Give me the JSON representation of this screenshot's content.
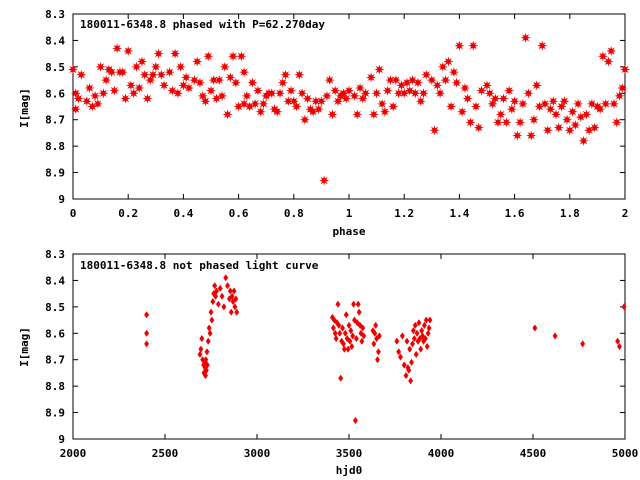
{
  "chart_data": [
    {
      "type": "scatter",
      "title": "180011-6348.8 phased with P=62.270day",
      "xlabel": "phase",
      "ylabel": "I[mag]",
      "xlim": [
        0,
        2
      ],
      "ylim": [
        8.3,
        9
      ],
      "y_inverted": true,
      "grid": false,
      "legend": "none",
      "marker": "star",
      "color": "#ee0000",
      "x_ticks": [
        "0",
        "0.2",
        "0.4",
        "0.6",
        "0.8",
        "1",
        "1.2",
        "1.4",
        "1.6",
        "1.8",
        "2"
      ],
      "y_ticks": [
        "8.3",
        "8.4",
        "8.5",
        "8.6",
        "8.7",
        "8.8",
        "8.9",
        "9"
      ],
      "points": [
        [
          0.0,
          8.51
        ],
        [
          0.01,
          8.6
        ],
        [
          0.01,
          8.66
        ],
        [
          0.02,
          8.62
        ],
        [
          0.03,
          8.53
        ],
        [
          0.05,
          8.63
        ],
        [
          0.06,
          8.58
        ],
        [
          0.07,
          8.65
        ],
        [
          0.08,
          8.61
        ],
        [
          0.09,
          8.64
        ],
        [
          0.1,
          8.5
        ],
        [
          0.11,
          8.6
        ],
        [
          0.12,
          8.55
        ],
        [
          0.13,
          8.51
        ],
        [
          0.14,
          8.52
        ],
        [
          0.15,
          8.59
        ],
        [
          0.16,
          8.43
        ],
        [
          0.17,
          8.52
        ],
        [
          0.18,
          8.52
        ],
        [
          0.19,
          8.62
        ],
        [
          0.2,
          8.44
        ],
        [
          0.21,
          8.57
        ],
        [
          0.22,
          8.6
        ],
        [
          0.23,
          8.5
        ],
        [
          0.24,
          8.58
        ],
        [
          0.25,
          8.48
        ],
        [
          0.26,
          8.53
        ],
        [
          0.27,
          8.62
        ],
        [
          0.28,
          8.55
        ],
        [
          0.29,
          8.53
        ],
        [
          0.3,
          8.5
        ],
        [
          0.31,
          8.45
        ],
        [
          0.32,
          8.53
        ],
        [
          0.33,
          8.57
        ],
        [
          0.35,
          8.52
        ],
        [
          0.36,
          8.59
        ],
        [
          0.37,
          8.45
        ],
        [
          0.38,
          8.6
        ],
        [
          0.39,
          8.5
        ],
        [
          0.4,
          8.57
        ],
        [
          0.41,
          8.54
        ],
        [
          0.42,
          8.58
        ],
        [
          0.44,
          8.55
        ],
        [
          0.45,
          8.48
        ],
        [
          0.46,
          8.56
        ],
        [
          0.47,
          8.61
        ],
        [
          0.48,
          8.63
        ],
        [
          0.49,
          8.46
        ],
        [
          0.5,
          8.59
        ],
        [
          0.51,
          8.55
        ],
        [
          0.52,
          8.62
        ],
        [
          0.53,
          8.55
        ],
        [
          0.54,
          8.61
        ],
        [
          0.55,
          8.5
        ],
        [
          0.56,
          8.68
        ],
        [
          0.57,
          8.54
        ],
        [
          0.58,
          8.46
        ],
        [
          0.59,
          8.56
        ],
        [
          0.6,
          8.65
        ],
        [
          0.61,
          8.46
        ],
        [
          0.62,
          8.52
        ],
        [
          0.62,
          8.64
        ],
        [
          0.63,
          8.61
        ],
        [
          0.64,
          8.65
        ],
        [
          0.65,
          8.56
        ],
        [
          0.66,
          8.64
        ],
        [
          0.67,
          8.59
        ],
        [
          0.68,
          8.67
        ],
        [
          0.69,
          8.64
        ],
        [
          0.7,
          8.61
        ],
        [
          0.71,
          8.6
        ],
        [
          0.72,
          8.6
        ],
        [
          0.73,
          8.66
        ],
        [
          0.74,
          8.67
        ],
        [
          0.75,
          8.6
        ],
        [
          0.76,
          8.56
        ],
        [
          0.77,
          8.53
        ],
        [
          0.78,
          8.63
        ],
        [
          0.79,
          8.59
        ],
        [
          0.8,
          8.63
        ],
        [
          0.81,
          8.65
        ],
        [
          0.82,
          8.53
        ],
        [
          0.83,
          8.6
        ],
        [
          0.84,
          8.7
        ],
        [
          0.85,
          8.62
        ],
        [
          0.86,
          8.66
        ],
        [
          0.87,
          8.67
        ],
        [
          0.88,
          8.63
        ],
        [
          0.89,
          8.66
        ],
        [
          0.9,
          8.63
        ],
        [
          0.91,
          8.93
        ],
        [
          0.92,
          8.61
        ],
        [
          0.93,
          8.55
        ],
        [
          0.94,
          8.68
        ],
        [
          0.95,
          8.59
        ],
        [
          0.96,
          8.63
        ],
        [
          0.97,
          8.61
        ],
        [
          0.98,
          8.6
        ],
        [
          0.99,
          8.62
        ],
        [
          1.0,
          8.59
        ],
        [
          1.02,
          8.61
        ],
        [
          1.03,
          8.68
        ],
        [
          1.04,
          8.58
        ],
        [
          1.05,
          8.62
        ],
        [
          1.06,
          8.6
        ],
        [
          1.08,
          8.54
        ],
        [
          1.09,
          8.68
        ],
        [
          1.1,
          8.6
        ],
        [
          1.11,
          8.51
        ],
        [
          1.12,
          8.64
        ],
        [
          1.13,
          8.67
        ],
        [
          1.14,
          8.59
        ],
        [
          1.15,
          8.55
        ],
        [
          1.16,
          8.65
        ],
        [
          1.17,
          8.55
        ],
        [
          1.18,
          8.6
        ],
        [
          1.19,
          8.57
        ],
        [
          1.2,
          8.6
        ],
        [
          1.21,
          8.56
        ],
        [
          1.22,
          8.59
        ],
        [
          1.23,
          8.55
        ],
        [
          1.24,
          8.6
        ],
        [
          1.25,
          8.56
        ],
        [
          1.26,
          8.63
        ],
        [
          1.27,
          8.6
        ],
        [
          1.28,
          8.53
        ],
        [
          1.3,
          8.55
        ],
        [
          1.31,
          8.74
        ],
        [
          1.32,
          8.57
        ],
        [
          1.33,
          8.6
        ],
        [
          1.34,
          8.5
        ],
        [
          1.35,
          8.55
        ],
        [
          1.36,
          8.48
        ],
        [
          1.37,
          8.65
        ],
        [
          1.38,
          8.52
        ],
        [
          1.39,
          8.56
        ],
        [
          1.4,
          8.42
        ],
        [
          1.41,
          8.67
        ],
        [
          1.42,
          8.58
        ],
        [
          1.43,
          8.62
        ],
        [
          1.44,
          8.71
        ],
        [
          1.45,
          8.42
        ],
        [
          1.46,
          8.65
        ],
        [
          1.47,
          8.73
        ],
        [
          1.48,
          8.59
        ],
        [
          1.5,
          8.57
        ],
        [
          1.51,
          8.6
        ],
        [
          1.52,
          8.64
        ],
        [
          1.53,
          8.62
        ],
        [
          1.54,
          8.71
        ],
        [
          1.55,
          8.68
        ],
        [
          1.56,
          8.62
        ],
        [
          1.57,
          8.71
        ],
        [
          1.58,
          8.59
        ],
        [
          1.59,
          8.66
        ],
        [
          1.6,
          8.63
        ],
        [
          1.61,
          8.76
        ],
        [
          1.62,
          8.71
        ],
        [
          1.63,
          8.64
        ],
        [
          1.64,
          8.39
        ],
        [
          1.65,
          8.6
        ],
        [
          1.66,
          8.76
        ],
        [
          1.67,
          8.7
        ],
        [
          1.68,
          8.57
        ],
        [
          1.69,
          8.65
        ],
        [
          1.7,
          8.42
        ],
        [
          1.71,
          8.64
        ],
        [
          1.72,
          8.74
        ],
        [
          1.73,
          8.66
        ],
        [
          1.74,
          8.63
        ],
        [
          1.75,
          8.68
        ],
        [
          1.76,
          8.73
        ],
        [
          1.77,
          8.65
        ],
        [
          1.78,
          8.63
        ],
        [
          1.79,
          8.7
        ],
        [
          1.8,
          8.74
        ],
        [
          1.81,
          8.67
        ],
        [
          1.82,
          8.72
        ],
        [
          1.83,
          8.64
        ],
        [
          1.84,
          8.69
        ],
        [
          1.85,
          8.78
        ],
        [
          1.86,
          8.68
        ],
        [
          1.87,
          8.74
        ],
        [
          1.88,
          8.64
        ],
        [
          1.89,
          8.73
        ],
        [
          1.9,
          8.65
        ],
        [
          1.91,
          8.66
        ],
        [
          1.92,
          8.46
        ],
        [
          1.93,
          8.64
        ],
        [
          1.94,
          8.48
        ],
        [
          1.95,
          8.44
        ],
        [
          1.96,
          8.64
        ],
        [
          1.97,
          8.71
        ],
        [
          1.98,
          8.61
        ],
        [
          1.99,
          8.58
        ],
        [
          2.0,
          8.51
        ]
      ]
    },
    {
      "type": "scatter",
      "title": "180011-6348.8 not phased light curve",
      "xlabel": "hjd0",
      "ylabel": "I[mag]",
      "xlim": [
        2000,
        5000
      ],
      "ylim": [
        8.3,
        9
      ],
      "y_inverted": true,
      "grid": false,
      "legend": "none",
      "marker": "diamond",
      "color": "#ee0000",
      "x_ticks": [
        "2000",
        "2500",
        "3000",
        "3500",
        "4000",
        "4500",
        "5000"
      ],
      "y_ticks": [
        "8.3",
        "8.4",
        "8.5",
        "8.6",
        "8.7",
        "8.8",
        "8.9",
        "9"
      ],
      "points": [
        [
          2400,
          8.53
        ],
        [
          2400,
          8.6
        ],
        [
          2400,
          8.64
        ],
        [
          2690,
          8.68
        ],
        [
          2695,
          8.66
        ],
        [
          2700,
          8.62
        ],
        [
          2705,
          8.7
        ],
        [
          2710,
          8.72
        ],
        [
          2712,
          8.75
        ],
        [
          2715,
          8.71
        ],
        [
          2718,
          8.73
        ],
        [
          2720,
          8.76
        ],
        [
          2722,
          8.7
        ],
        [
          2725,
          8.74
        ],
        [
          2728,
          8.67
        ],
        [
          2730,
          8.72
        ],
        [
          2735,
          8.63
        ],
        [
          2740,
          8.58
        ],
        [
          2745,
          8.6
        ],
        [
          2750,
          8.52
        ],
        [
          2755,
          8.55
        ],
        [
          2760,
          8.48
        ],
        [
          2765,
          8.45
        ],
        [
          2770,
          8.42
        ],
        [
          2775,
          8.46
        ],
        [
          2780,
          8.44
        ],
        [
          2790,
          8.49
        ],
        [
          2800,
          8.43
        ],
        [
          2810,
          8.46
        ],
        [
          2820,
          8.5
        ],
        [
          2830,
          8.39
        ],
        [
          2840,
          8.42
        ],
        [
          2850,
          8.47
        ],
        [
          2855,
          8.44
        ],
        [
          2860,
          8.52
        ],
        [
          2865,
          8.46
        ],
        [
          2870,
          8.48
        ],
        [
          2875,
          8.44
        ],
        [
          2880,
          8.5
        ],
        [
          2885,
          8.47
        ],
        [
          2890,
          8.52
        ],
        [
          3410,
          8.54
        ],
        [
          3415,
          8.58
        ],
        [
          3420,
          8.55
        ],
        [
          3425,
          8.6
        ],
        [
          3430,
          8.62
        ],
        [
          3435,
          8.56
        ],
        [
          3440,
          8.49
        ],
        [
          3445,
          8.57
        ],
        [
          3450,
          8.6
        ],
        [
          3455,
          8.77
        ],
        [
          3460,
          8.63
        ],
        [
          3465,
          8.58
        ],
        [
          3470,
          8.64
        ],
        [
          3475,
          8.66
        ],
        [
          3480,
          8.6
        ],
        [
          3485,
          8.53
        ],
        [
          3490,
          8.62
        ],
        [
          3495,
          8.66
        ],
        [
          3500,
          8.57
        ],
        [
          3505,
          8.63
        ],
        [
          3510,
          8.59
        ],
        [
          3515,
          8.65
        ],
        [
          3520,
          8.61
        ],
        [
          3525,
          8.49
        ],
        [
          3530,
          8.55
        ],
        [
          3535,
          8.93
        ],
        [
          3540,
          8.62
        ],
        [
          3545,
          8.56
        ],
        [
          3550,
          8.49
        ],
        [
          3555,
          8.52
        ],
        [
          3560,
          8.57
        ],
        [
          3565,
          8.6
        ],
        [
          3570,
          8.63
        ],
        [
          3575,
          8.58
        ],
        [
          3580,
          8.61
        ],
        [
          3630,
          8.59
        ],
        [
          3635,
          8.64
        ],
        [
          3640,
          8.6
        ],
        [
          3645,
          8.57
        ],
        [
          3650,
          8.62
        ],
        [
          3655,
          8.7
        ],
        [
          3660,
          8.67
        ],
        [
          3665,
          8.61
        ],
        [
          3760,
          8.63
        ],
        [
          3770,
          8.67
        ],
        [
          3780,
          8.69
        ],
        [
          3790,
          8.61
        ],
        [
          3800,
          8.72
        ],
        [
          3810,
          8.76
        ],
        [
          3815,
          8.63
        ],
        [
          3820,
          8.73
        ],
        [
          3825,
          8.74
        ],
        [
          3830,
          8.66
        ],
        [
          3835,
          8.78
        ],
        [
          3840,
          8.71
        ],
        [
          3845,
          8.64
        ],
        [
          3850,
          8.59
        ],
        [
          3855,
          8.62
        ],
        [
          3860,
          8.57
        ],
        [
          3865,
          8.68
        ],
        [
          3870,
          8.6
        ],
        [
          3875,
          8.63
        ],
        [
          3880,
          8.56
        ],
        [
          3885,
          8.62
        ],
        [
          3890,
          8.66
        ],
        [
          3895,
          8.59
        ],
        [
          3900,
          8.61
        ],
        [
          3905,
          8.63
        ],
        [
          3910,
          8.57
        ],
        [
          3915,
          8.62
        ],
        [
          3920,
          8.55
        ],
        [
          3925,
          8.65
        ],
        [
          3930,
          8.6
        ],
        [
          3935,
          8.58
        ],
        [
          3940,
          8.55
        ],
        [
          4510,
          8.58
        ],
        [
          4620,
          8.61
        ],
        [
          4770,
          8.64
        ],
        [
          4960,
          8.63
        ],
        [
          4970,
          8.65
        ],
        [
          4995,
          8.5
        ]
      ]
    }
  ]
}
